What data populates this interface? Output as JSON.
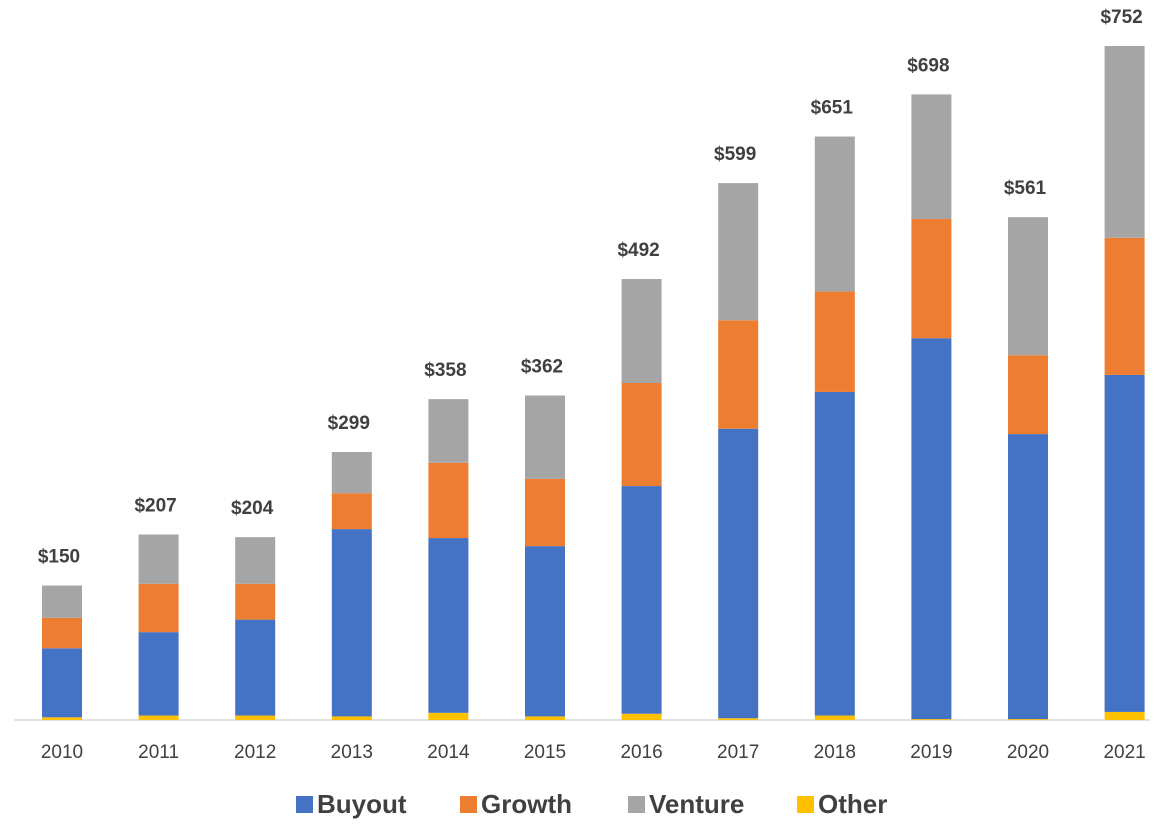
{
  "chart_data": {
    "type": "stacked_bar",
    "categories": [
      "2010",
      "2011",
      "2012",
      "2013",
      "2014",
      "2015",
      "2016",
      "2017",
      "2018",
      "2019",
      "2020",
      "2021"
    ],
    "series": [
      {
        "name": "Other",
        "color": "#ffc000",
        "values": [
          3,
          5,
          5,
          4,
          8,
          4,
          7,
          2,
          5,
          1,
          1,
          9
        ]
      },
      {
        "name": "Buyout",
        "color": "#4472c4",
        "values": [
          77,
          93,
          107,
          209,
          195,
          190,
          254,
          323,
          361,
          425,
          318,
          376
        ]
      },
      {
        "name": "Growth",
        "color": "#ed7d31",
        "values": [
          34,
          54,
          40,
          40,
          84,
          75,
          115,
          121,
          112,
          133,
          88,
          153
        ]
      },
      {
        "name": "Venture",
        "color": "#a5a5a5",
        "values": [
          36,
          55,
          52,
          46,
          71,
          93,
          116,
          153,
          173,
          139,
          154,
          214
        ]
      }
    ],
    "legend_order": [
      "Buyout",
      "Growth",
      "Venture",
      "Other"
    ],
    "totals": {
      "values": [
        150,
        207,
        204,
        299,
        358,
        362,
        492,
        599,
        651,
        698,
        561,
        752
      ],
      "value_labels": [
        "$150",
        "$207",
        "$204",
        "$299",
        "$358",
        "$362",
        "$492",
        "$599",
        "$651",
        "$698",
        "$561",
        "$752"
      ]
    },
    "legend": "bottom"
  }
}
